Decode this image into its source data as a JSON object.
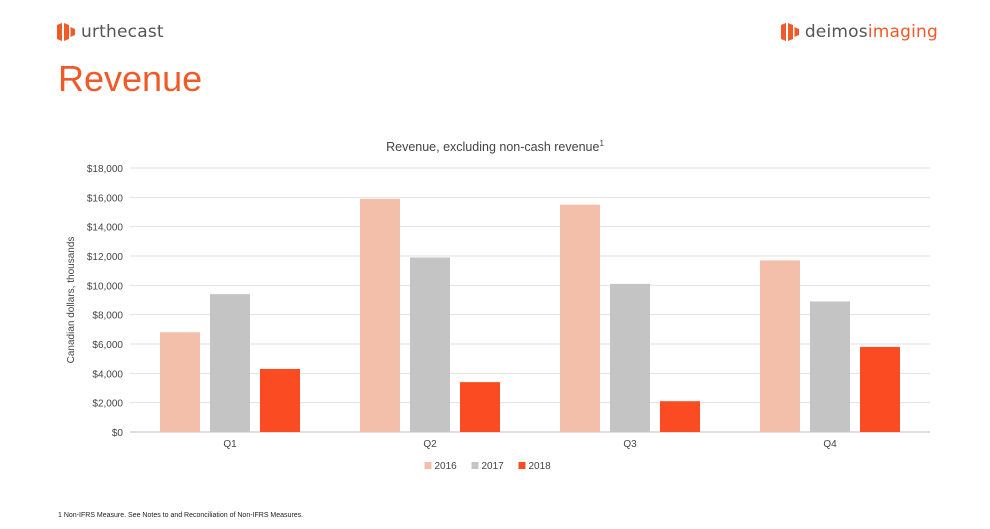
{
  "header": {
    "left_logo": {
      "icon": "urthecast-logo-icon",
      "text": "urthecast"
    },
    "right_logo": {
      "icon": "deimos-logo-icon",
      "text_main": "deimos",
      "text_accent": "imaging"
    }
  },
  "page_title": "Revenue",
  "footnote": "1 Non-IFRS Measure. See Notes to and Reconciliation of Non-IFRS Measures.",
  "colors": {
    "accent": "#f05a28",
    "s2016": "#f4bfaa",
    "s2017": "#c4c4c4",
    "s2018": "#fb4b22"
  },
  "chart_data": {
    "type": "bar",
    "title": "Revenue, excluding non-cash revenue",
    "title_sup": "1",
    "xlabel": "",
    "ylabel": "Canadian dollars, thousands",
    "ylim": [
      0,
      18000
    ],
    "yticks": [
      0,
      2000,
      4000,
      6000,
      8000,
      10000,
      12000,
      14000,
      16000,
      18000
    ],
    "ytick_labels": [
      "$0",
      "$2,000",
      "$4,000",
      "$6,000",
      "$8,000",
      "$10,000",
      "$12,000",
      "$14,000",
      "$16,000",
      "$18,000"
    ],
    "categories": [
      "Q1",
      "Q2",
      "Q3",
      "Q4"
    ],
    "series": [
      {
        "name": "2016",
        "color": "#f4bfaa",
        "values": [
          6800,
          15900,
          15500,
          11700
        ]
      },
      {
        "name": "2017",
        "color": "#c4c4c4",
        "values": [
          9400,
          11900,
          10100,
          8900
        ]
      },
      {
        "name": "2018",
        "color": "#fb4b22",
        "values": [
          4300,
          3400,
          2100,
          5800
        ]
      }
    ],
    "grid": true,
    "legend": "bottom"
  }
}
